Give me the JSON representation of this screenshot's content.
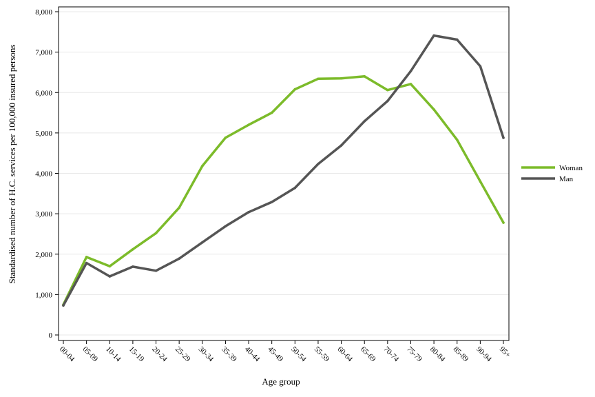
{
  "chart_data": {
    "type": "line",
    "xlabel": "Age group",
    "ylabel": "Standardised number of H.C. services per 100,000 insured persons",
    "categories": [
      "00-04",
      "05-09",
      "10-14",
      "15-19",
      "20-24",
      "25-29",
      "30-34",
      "35-39",
      "40-44",
      "45-49",
      "50-54",
      "55-59",
      "60-64",
      "65-69",
      "70-74",
      "75-79",
      "80-84",
      "85-89",
      "90-94",
      "95+"
    ],
    "ylim": [
      0,
      8000
    ],
    "yticks": [
      0,
      1000,
      2000,
      3000,
      4000,
      5000,
      6000,
      7000,
      8000
    ],
    "ytick_labels": [
      "0",
      "1,000",
      "2,000",
      "3,000",
      "4,000",
      "5,000",
      "6,000",
      "7,000",
      "8,000"
    ],
    "grid": "horizontal",
    "legend_position": "right",
    "series": [
      {
        "name": "Woman",
        "color": "#7cbb2a",
        "values": [
          750,
          1930,
          1700,
          2120,
          2520,
          3150,
          4180,
          4880,
          5200,
          5500,
          6080,
          6340,
          6350,
          6400,
          6060,
          6210,
          5580,
          4830,
          3800,
          2780
        ]
      },
      {
        "name": "Man",
        "color": "#555555",
        "values": [
          730,
          1780,
          1450,
          1690,
          1590,
          1890,
          2290,
          2690,
          3040,
          3290,
          3640,
          4230,
          4690,
          5290,
          5790,
          6530,
          7410,
          7310,
          6650,
          4880
        ]
      }
    ]
  }
}
